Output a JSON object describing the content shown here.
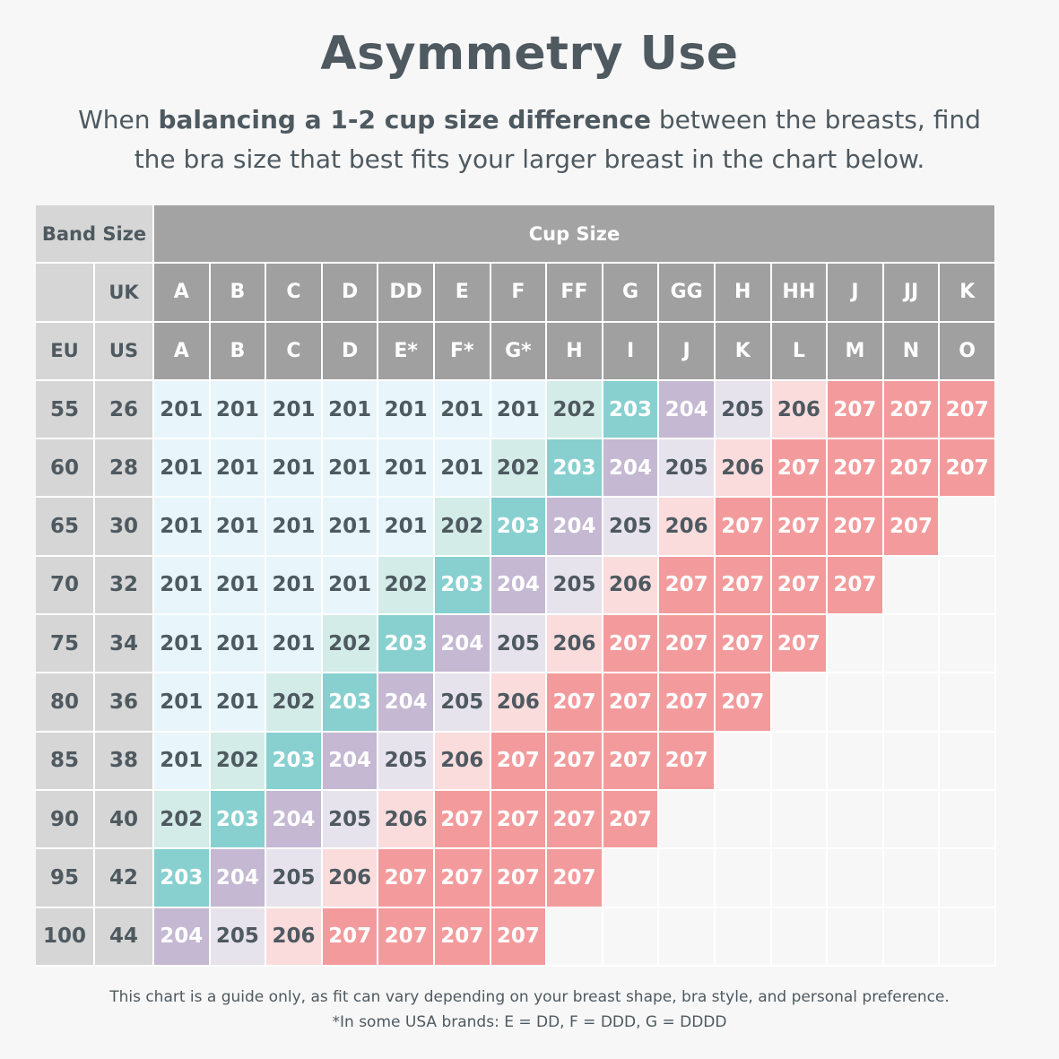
{
  "title": "Asymmetry Use",
  "subtitle": {
    "pre": "When ",
    "bold": "balancing a 1-2 cup size difference",
    "post": " between the breasts, find the bra size that best fits your larger breast in the chart below."
  },
  "table": {
    "band_size_label": "Band Size",
    "cup_size_label": "Cup Size",
    "uk_label": "UK",
    "eu_label": "EU",
    "us_label": "US",
    "uk_cups": [
      "A",
      "B",
      "C",
      "D",
      "DD",
      "E",
      "F",
      "FF",
      "G",
      "GG",
      "H",
      "HH",
      "J",
      "JJ",
      "K"
    ],
    "us_cups": [
      "A",
      "B",
      "C",
      "D",
      "E*",
      "F*",
      "G*",
      "H",
      "I",
      "J",
      "K",
      "L",
      "M",
      "N",
      "O"
    ],
    "rows": [
      {
        "eu": "55",
        "us": "26",
        "values": [
          "201",
          "201",
          "201",
          "201",
          "201",
          "201",
          "201",
          "202",
          "203",
          "204",
          "205",
          "206",
          "207",
          "207",
          "207"
        ]
      },
      {
        "eu": "60",
        "us": "28",
        "values": [
          "201",
          "201",
          "201",
          "201",
          "201",
          "201",
          "202",
          "203",
          "204",
          "205",
          "206",
          "207",
          "207",
          "207",
          "207"
        ]
      },
      {
        "eu": "65",
        "us": "30",
        "values": [
          "201",
          "201",
          "201",
          "201",
          "201",
          "202",
          "203",
          "204",
          "205",
          "206",
          "207",
          "207",
          "207",
          "207",
          ""
        ]
      },
      {
        "eu": "70",
        "us": "32",
        "values": [
          "201",
          "201",
          "201",
          "201",
          "202",
          "203",
          "204",
          "205",
          "206",
          "207",
          "207",
          "207",
          "207",
          "",
          ""
        ]
      },
      {
        "eu": "75",
        "us": "34",
        "values": [
          "201",
          "201",
          "201",
          "202",
          "203",
          "204",
          "205",
          "206",
          "207",
          "207",
          "207",
          "207",
          "",
          "",
          ""
        ]
      },
      {
        "eu": "80",
        "us": "36",
        "values": [
          "201",
          "201",
          "202",
          "203",
          "204",
          "205",
          "206",
          "207",
          "207",
          "207",
          "207",
          "",
          "",
          "",
          ""
        ]
      },
      {
        "eu": "85",
        "us": "38",
        "values": [
          "201",
          "202",
          "203",
          "204",
          "205",
          "206",
          "207",
          "207",
          "207",
          "207",
          "",
          "",
          "",
          "",
          ""
        ]
      },
      {
        "eu": "90",
        "us": "40",
        "values": [
          "202",
          "203",
          "204",
          "205",
          "206",
          "207",
          "207",
          "207",
          "207",
          "",
          "",
          "",
          "",
          "",
          ""
        ]
      },
      {
        "eu": "95",
        "us": "42",
        "values": [
          "203",
          "204",
          "205",
          "206",
          "207",
          "207",
          "207",
          "207",
          "",
          "",
          "",
          "",
          "",
          "",
          ""
        ]
      },
      {
        "eu": "100",
        "us": "44",
        "values": [
          "204",
          "205",
          "206",
          "207",
          "207",
          "207",
          "207",
          "",
          "",
          "",
          "",
          "",
          "",
          "",
          ""
        ]
      }
    ],
    "colors": {
      "201": {
        "bg": "#e8f5fb",
        "fg": "#4e5960"
      },
      "202": {
        "bg": "#d3ece8",
        "fg": "#4e5960"
      },
      "203": {
        "bg": "#87d0cf",
        "fg": "#ffffff"
      },
      "204": {
        "bg": "#c4b8d2",
        "fg": "#ffffff"
      },
      "205": {
        "bg": "#e7e3ec",
        "fg": "#4e5960"
      },
      "206": {
        "bg": "#fadcdd",
        "fg": "#4e5960"
      },
      "207": {
        "bg": "#f39b9c",
        "fg": "#ffffff"
      }
    }
  },
  "footer": {
    "line1": "This chart is a guide only, as fit can vary depending on your breast shape, bra style, and personal preference.",
    "line2": "*In some USA brands: E = DD, F = DDD, G = DDDD"
  }
}
